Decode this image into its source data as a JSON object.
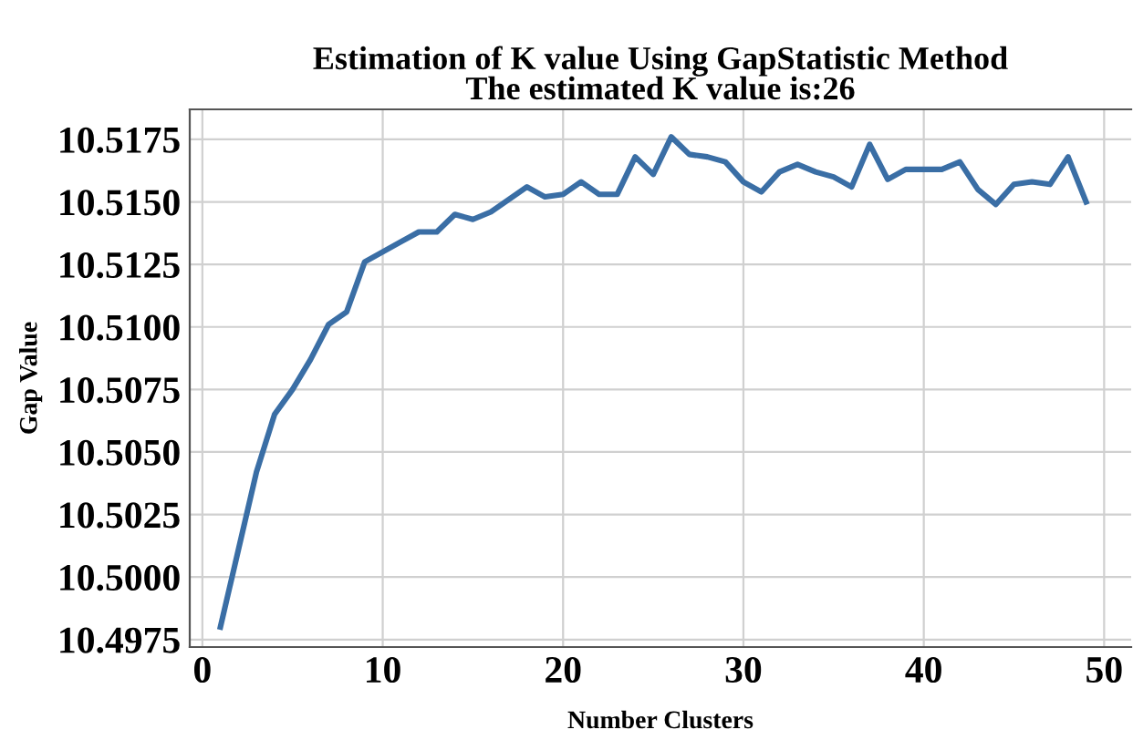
{
  "chart_data": {
    "type": "line",
    "title": "Estimation of K value Using GapStatistic Method\nThe estimated K value is:26",
    "xlabel": "Number Clusters",
    "ylabel": "Gap Value",
    "x": [
      1,
      2,
      3,
      4,
      5,
      6,
      7,
      8,
      9,
      10,
      11,
      12,
      13,
      14,
      15,
      16,
      17,
      18,
      19,
      20,
      21,
      22,
      23,
      24,
      25,
      26,
      27,
      28,
      29,
      30,
      31,
      32,
      33,
      34,
      35,
      36,
      37,
      38,
      39,
      40,
      41,
      42,
      43,
      44,
      45,
      46,
      47,
      48,
      49
    ],
    "series": [
      {
        "color": "#3a6ea5",
        "values": [
          10.498,
          10.5011,
          10.5042,
          10.5065,
          10.5075,
          10.5087,
          10.5101,
          10.5106,
          10.5126,
          10.513,
          10.5134,
          10.5138,
          10.5138,
          10.5145,
          10.5143,
          10.5146,
          10.5151,
          10.5156,
          10.5152,
          10.5153,
          10.5158,
          10.5153,
          10.5153,
          10.5168,
          10.5161,
          10.5176,
          10.5169,
          10.5168,
          10.5166,
          10.5158,
          10.5154,
          10.5162,
          10.5165,
          10.5162,
          10.516,
          10.5156,
          10.5173,
          10.5159,
          10.5163,
          10.5163,
          10.5163,
          10.5166,
          10.5155,
          10.5149,
          10.5157,
          10.5158,
          10.5157,
          10.5168,
          10.515
        ]
      }
    ],
    "xlim": [
      -0.7,
      51.5
    ],
    "ylim": [
      10.4972,
      10.5187
    ],
    "xticks": [
      0,
      10,
      20,
      30,
      40,
      50
    ],
    "yticks": [
      {
        "value": 10.4975,
        "label": "10.4975"
      },
      {
        "value": 10.5,
        "label": "10.5000"
      },
      {
        "value": 10.5025,
        "label": "10.5025"
      },
      {
        "value": 10.505,
        "label": "10.5050"
      },
      {
        "value": 10.5075,
        "label": "10.5075"
      },
      {
        "value": 10.51,
        "label": "10.5100"
      },
      {
        "value": 10.5125,
        "label": "10.5125"
      },
      {
        "value": 10.515,
        "label": "10.5150"
      },
      {
        "value": 10.5175,
        "label": "10.5175"
      }
    ],
    "grid": true,
    "line_style": "solid",
    "marker": "none"
  }
}
